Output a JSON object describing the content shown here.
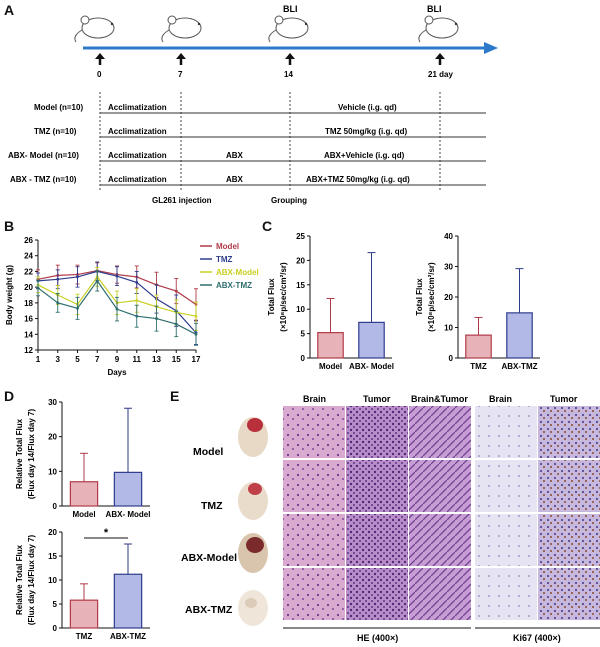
{
  "panels": {
    "a": "A",
    "b": "B",
    "c": "C",
    "d": "D",
    "e": "E"
  },
  "timeline": {
    "bli_labels": [
      "BLI",
      "BLI"
    ],
    "ticks": [
      "0",
      "7",
      "14",
      "21 day"
    ],
    "groups": [
      {
        "name": "Model (n=10)",
        "acclimatization": "Acclimatization",
        "mid": "",
        "treatment": "Vehicle  (i.g. qd)"
      },
      {
        "name": "TMZ (n=10)",
        "acclimatization": "Acclimatization",
        "mid": "",
        "treatment": "TMZ  50mg/kg  (i.g. qd)"
      },
      {
        "name": "ABX- Model (n=10)",
        "acclimatization": "Acclimatization",
        "mid": "ABX",
        "treatment": "ABX+Vehicle  (i.g. qd)"
      },
      {
        "name": "ABX - TMZ (n=10)",
        "acclimatization": "Acclimatization",
        "mid": "ABX",
        "treatment": "ABX+TMZ 50mg/kg  (i.g. qd)"
      }
    ],
    "bottom_labels": [
      "GL261 injection",
      "Grouping"
    ]
  },
  "colors": {
    "model": "#b03a48",
    "tmz": "#2e3c8c",
    "abx_model": "#c8d020",
    "abx_tmz": "#2e6e6e",
    "bar_red_fill": "#e7b3b9",
    "bar_blue_fill": "#b3b9e7",
    "arrow": "#2d78c8"
  },
  "chart_data": [
    {
      "type": "line",
      "id": "B",
      "xlabel": "Days",
      "ylabel": "Body weight (g)",
      "x": [
        1,
        3,
        5,
        7,
        9,
        11,
        13,
        15,
        17
      ],
      "xticks": [
        "1",
        "3",
        "5",
        "7",
        "9",
        "11",
        "13",
        "15",
        "17"
      ],
      "yticks": [
        "12",
        "14",
        "16",
        "18",
        "20",
        "22",
        "24",
        "26"
      ],
      "ylim": [
        12,
        26
      ],
      "series": [
        {
          "name": "Model",
          "values": [
            21.0,
            21.5,
            21.6,
            22.1,
            21.6,
            21.3,
            20.3,
            19.5,
            17.8
          ],
          "err": [
            1.2,
            1.3,
            1.2,
            1.0,
            1.1,
            1.4,
            1.6,
            1.6,
            2.0
          ]
        },
        {
          "name": "TMZ",
          "values": [
            20.8,
            21.0,
            21.3,
            22.0,
            21.4,
            20.6,
            18.5,
            17.0,
            14.2
          ],
          "err": [
            1.0,
            1.2,
            1.3,
            1.2,
            1.2,
            1.4,
            1.8,
            2.0,
            1.5
          ]
        },
        {
          "name": "ABX-Model",
          "values": [
            20.3,
            19.0,
            17.8,
            21.3,
            18.0,
            18.3,
            17.5,
            16.8,
            16.3
          ],
          "err": [
            1.0,
            1.2,
            1.3,
            1.2,
            1.5,
            1.5,
            1.5,
            1.6,
            1.8
          ]
        },
        {
          "name": "ABX-TMZ",
          "values": [
            19.9,
            18.0,
            17.3,
            20.8,
            17.2,
            16.3,
            16.0,
            15.3,
            14.0
          ],
          "err": [
            1.0,
            1.2,
            1.4,
            1.3,
            1.5,
            1.4,
            1.6,
            1.6,
            1.4
          ]
        }
      ]
    },
    {
      "type": "bar",
      "id": "C-left",
      "categories": [
        "Model",
        "ABX- Model"
      ],
      "values": [
        5.2,
        7.3
      ],
      "err": [
        7.0,
        14.3
      ],
      "ylabel_line1": "Total Flux",
      "ylabel_line2": "(×10⁸p/sec/cm²/sr)",
      "yticks": [
        "0",
        "5",
        "10",
        "15",
        "20",
        "25"
      ],
      "ylim": [
        0,
        25
      ]
    },
    {
      "type": "bar",
      "id": "C-right",
      "categories": [
        "TMZ",
        "ABX-TMZ"
      ],
      "values": [
        7.5,
        14.8
      ],
      "err": [
        5.8,
        14.5
      ],
      "ylabel_line1": "Total Flux",
      "ylabel_line2": "(×10⁸p/sec/cm²/sr)",
      "yticks": [
        "0",
        "10",
        "20",
        "30",
        "40"
      ],
      "ylim": [
        0,
        40
      ]
    },
    {
      "type": "bar",
      "id": "D-top",
      "categories": [
        "Model",
        "ABX- Model"
      ],
      "values": [
        7.0,
        9.7
      ],
      "err": [
        8.2,
        18.5
      ],
      "ylabel_line1": "Relative Total Flux",
      "ylabel_line2": "(Flux day 14/Flux day 7)",
      "yticks": [
        "0",
        "10",
        "20",
        "30"
      ],
      "ylim": [
        0,
        30
      ]
    },
    {
      "type": "bar",
      "id": "D-bottom",
      "categories": [
        "TMZ",
        "ABX-TMZ"
      ],
      "values": [
        5.8,
        11.2
      ],
      "err": [
        3.4,
        6.3
      ],
      "significance": "*",
      "ylabel_line1": "Relative Total Flux",
      "ylabel_line2": "(Flux day 14/Flux day 7)",
      "yticks": [
        "0",
        "5",
        "10",
        "15",
        "20"
      ],
      "ylim": [
        0,
        20
      ]
    }
  ],
  "histology": {
    "col_headers": [
      "Brain",
      "Tumor",
      "Brain&Tumor",
      "Brain",
      "Tumor"
    ],
    "rows": [
      "Model",
      "TMZ",
      "ABX-Model",
      "ABX-TMZ"
    ],
    "footer_he": "HE (400×)",
    "footer_ki67": "Ki67 (400×)"
  }
}
